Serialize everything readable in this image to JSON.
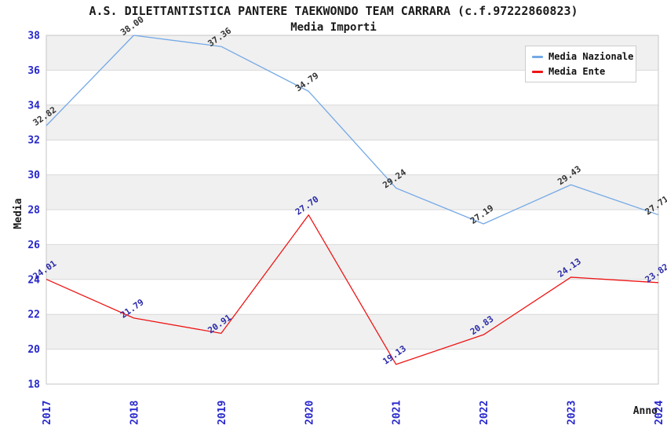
{
  "chart_data": {
    "type": "line",
    "title": "A.S. DILETTANTISTICA PANTERE TAEKWONDO TEAM CARRARA (c.f.97222860823)",
    "subtitle": "Media Importi",
    "xlabel": "Anno",
    "ylabel": "Media",
    "categories": [
      "2017",
      "2018",
      "2019",
      "2020",
      "2021",
      "2022",
      "2023",
      "2024"
    ],
    "series": [
      {
        "name": "Media Nazionale",
        "color": "#74a9e6",
        "label_color": "#333333",
        "values": [
          32.82,
          38.0,
          37.36,
          34.79,
          29.24,
          27.19,
          29.43,
          27.71
        ]
      },
      {
        "name": "Media Ente",
        "color": "#ee1515",
        "label_color": "#2b2ba8",
        "values": [
          24.01,
          21.79,
          20.91,
          27.7,
          19.13,
          20.83,
          24.13,
          23.82
        ]
      }
    ],
    "ylim": [
      18,
      38
    ],
    "ytick_step": 2,
    "yticks": [
      18,
      20,
      22,
      24,
      26,
      28,
      30,
      32,
      34,
      36,
      38
    ],
    "grid": true,
    "legend_position": "top-right",
    "colors": {
      "tick_label": "#2626cc",
      "band": "#f0f0f0",
      "grid_line": "#d9d9d9",
      "plot_border": "#c6c6c6",
      "title": "#1a1a1a"
    }
  }
}
